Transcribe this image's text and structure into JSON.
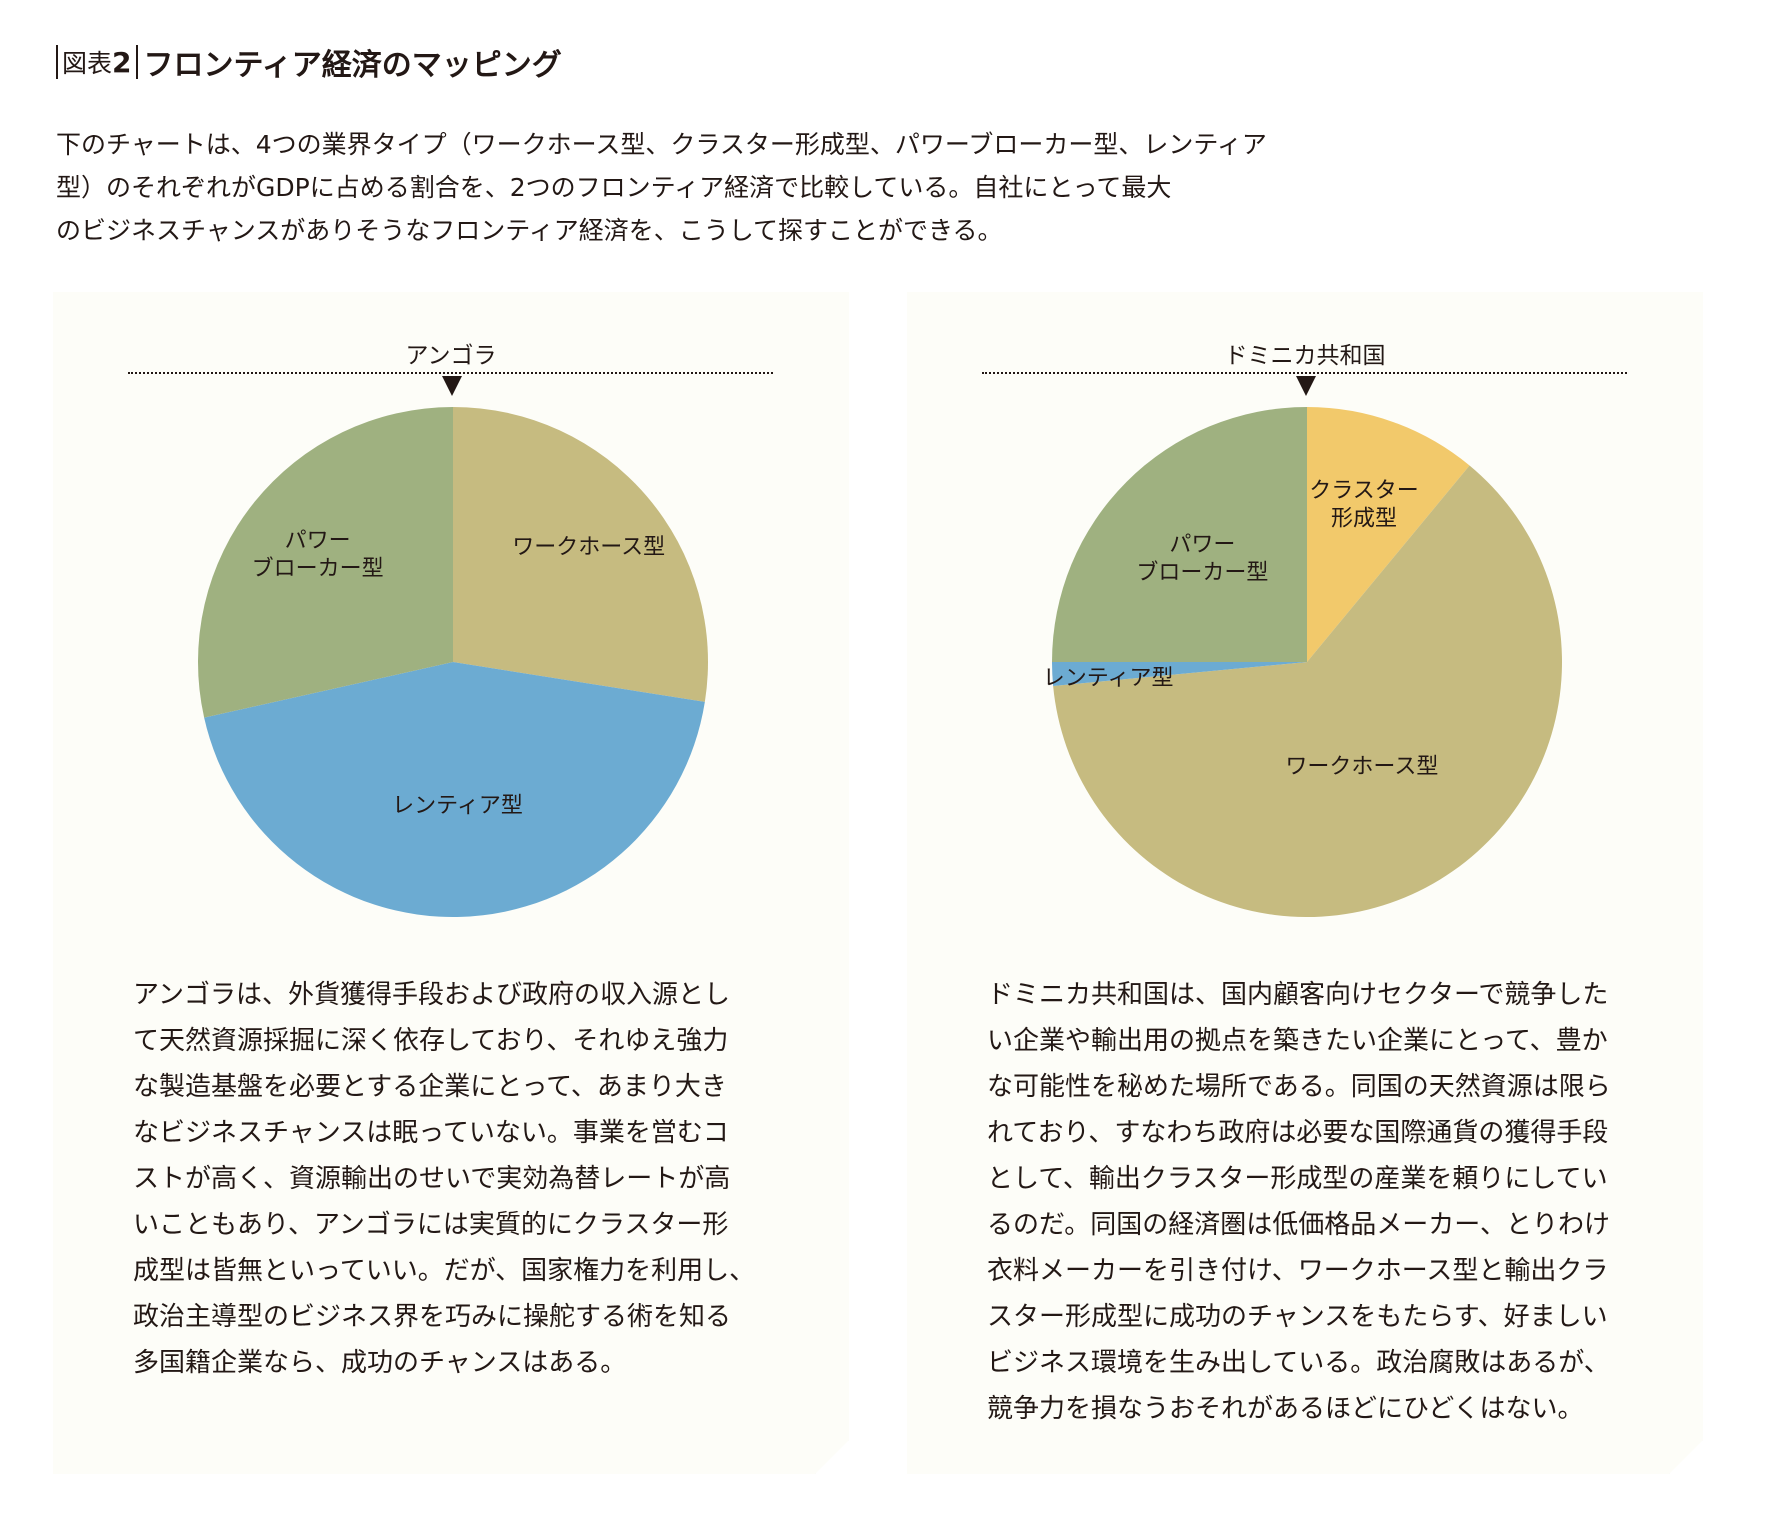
{
  "header": {
    "fig_prefix": "図表",
    "fig_num": "2",
    "title": "フロンティア経済のマッピング"
  },
  "intro_lines": [
    "下のチャートは、4つの業界タイプ（ワークホース型、クラスター形成型、パワーブローカー型、レンティア",
    "型）のそれぞれがGDPに占める割合を、2つのフロンティア経済で比較している。自社にとって最大",
    "のビジネスチャンスがありそうなフロンティア経済を、こうして探すことができる。"
  ],
  "colors": {
    "workhorse": "#c6bb80",
    "rentier": "#6cabd2",
    "powerbroker": "#9fb180",
    "cluster": "#f2c96b"
  },
  "chart_data": [
    {
      "type": "pie",
      "title": "アンゴラ",
      "slices": [
        {
          "label": "ワークホース型",
          "value": 27.5,
          "color": "#c6bb80"
        },
        {
          "label": "レンティア型",
          "value": 44.0,
          "color": "#6cabd2"
        },
        {
          "label": "パワー\nブローカー型",
          "value": 28.5,
          "color": "#9fb180"
        }
      ]
    },
    {
      "type": "pie",
      "title": "ドミニカ共和国",
      "slices": [
        {
          "label": "クラスター\n形成型",
          "value": 11.0,
          "color": "#f2c96b"
        },
        {
          "label": "ワークホース型",
          "value": 62.5,
          "color": "#c6bb80"
        },
        {
          "label": "レンティア型",
          "value": 1.5,
          "color": "#6cabd2"
        },
        {
          "label": "パワー\nブローカー型",
          "value": 25.0,
          "color": "#9fb180"
        }
      ]
    }
  ],
  "angola": {
    "country": "アンゴラ",
    "lines": [
      "アンゴラは、外貨獲得手段および政府の収入源とし",
      "て天然資源採掘に深く依存しており、それゆえ強力",
      "な製造基盤を必要とする企業にとって、あまり大き",
      "なビジネスチャンスは眠っていない。事業を営むコ",
      "ストが高く、資源輸出のせいで実効為替レートが高",
      "いこともあり、アンゴラには実質的にクラスター形",
      "成型は皆無といっていい。だが、国家権力を利用し、",
      "政治主導型のビジネス界を巧みに操舵する術を知る",
      "多国籍企業なら、成功のチャンスはある。"
    ]
  },
  "dominica": {
    "country": "ドミニカ共和国",
    "lines": [
      "ドミニカ共和国は、国内顧客向けセクターで競争した",
      "い企業や輸出用の拠点を築きたい企業にとって、豊か",
      "な可能性を秘めた場所である。同国の天然資源は限ら",
      "れており、すなわち政府は必要な国際通貨の獲得手段",
      "として、輸出クラスター形成型の産業を頼りにしてい",
      "るのだ。同国の経済圏は低価格品メーカー、とりわけ",
      "衣料メーカーを引き付け、ワークホース型と輸出クラ",
      "スター形成型に成功のチャンスをもたらす、好ましい",
      "ビジネス環境を生み出している。政治腐敗はあるが、",
      "競争力を損なうおそれがあるほどにひどくはない。"
    ]
  }
}
